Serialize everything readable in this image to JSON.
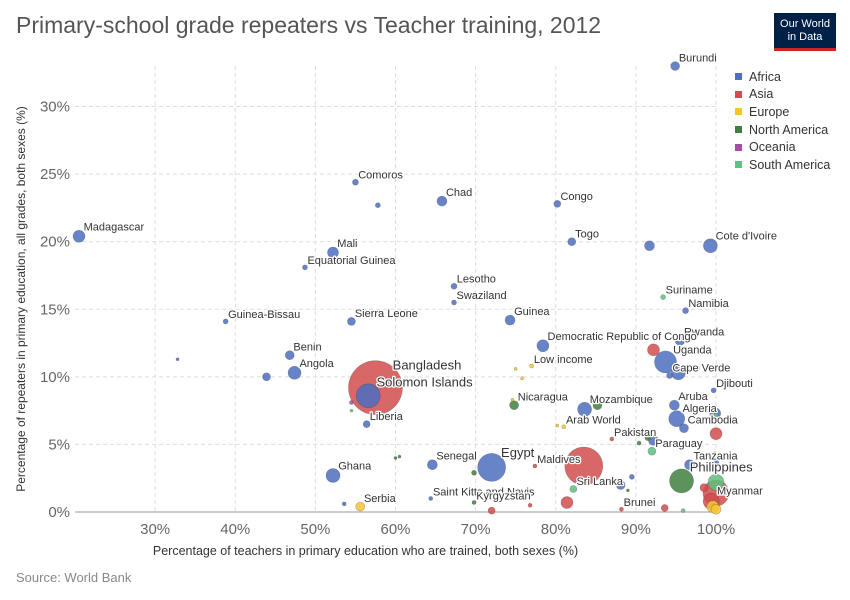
{
  "header": {
    "title": "Primary-school grade repeaters vs Teacher training, 2012",
    "logo_line1": "Our World",
    "logo_line2": "in Data"
  },
  "footer": {
    "source": "Source: World Bank"
  },
  "legend": {
    "items": [
      {
        "label": "Africa",
        "color": "#4c6fbf"
      },
      {
        "label": "Asia",
        "color": "#d14c4c"
      },
      {
        "label": "Europe",
        "color": "#f4c431"
      },
      {
        "label": "North America",
        "color": "#3f7f3f"
      },
      {
        "label": "Oceania",
        "color": "#a64ca6"
      },
      {
        "label": "South America",
        "color": "#5fbf7f"
      }
    ]
  },
  "chart_data": {
    "type": "scatter",
    "title": "Primary-school grade repeaters vs Teacher training, 2012",
    "xlabel": "Percentage of teachers in primary education who are trained, both sexes (%)",
    "ylabel": "Percentage of repeaters in primary education, all grades, both sexes (%)",
    "xlim": [
      20,
      100
    ],
    "ylim": [
      0,
      33
    ],
    "x_ticks": [
      30,
      40,
      50,
      60,
      70,
      80,
      90,
      100
    ],
    "x_tick_labels": [
      "30%",
      "40%",
      "50%",
      "60%",
      "70%",
      "80%",
      "90%",
      "100%"
    ],
    "y_ticks": [
      0,
      5,
      10,
      15,
      20,
      25,
      30
    ],
    "y_tick_labels": [
      "0%",
      "5%",
      "10%",
      "15%",
      "20%",
      "25%",
      "30%"
    ],
    "grid": true,
    "legend_position": "right",
    "points": [
      {
        "label": "Burundi",
        "region": "Africa",
        "x": 94.9,
        "y": 33.0,
        "size": 4.5,
        "show_label": true
      },
      {
        "label": "Madagascar",
        "region": "Africa",
        "x": 20.5,
        "y": 20.4,
        "size": 6,
        "show_label": true
      },
      {
        "label": "Comoros",
        "region": "Africa",
        "x": 55.0,
        "y": 24.4,
        "size": 3,
        "show_label": true
      },
      {
        "label": "",
        "region": "Africa",
        "x": 57.8,
        "y": 22.7,
        "size": 2.5,
        "show_label": false
      },
      {
        "label": "Chad",
        "region": "Africa",
        "x": 65.8,
        "y": 23.0,
        "size": 5,
        "show_label": true
      },
      {
        "label": "Congo",
        "region": "Africa",
        "x": 80.2,
        "y": 22.8,
        "size": 3.5,
        "show_label": true
      },
      {
        "label": "Mali",
        "region": "Africa",
        "x": 52.2,
        "y": 19.2,
        "size": 5.5,
        "show_label": true
      },
      {
        "label": "Equatorial Guinea",
        "region": "Africa",
        "x": 48.7,
        "y": 18.1,
        "size": 2.5,
        "show_label": true
      },
      {
        "label": "Togo",
        "region": "Africa",
        "x": 82.0,
        "y": 20.0,
        "size": 4,
        "show_label": true
      },
      {
        "label": "",
        "region": "Africa",
        "x": 91.7,
        "y": 19.7,
        "size": 5,
        "show_label": false
      },
      {
        "label": "Cote d'Ivoire",
        "region": "Africa",
        "x": 99.3,
        "y": 19.7,
        "size": 7,
        "show_label": true
      },
      {
        "label": "Lesotho",
        "region": "Africa",
        "x": 67.3,
        "y": 16.7,
        "size": 3,
        "show_label": true
      },
      {
        "label": "Swaziland",
        "region": "Africa",
        "x": 67.3,
        "y": 15.5,
        "size": 2.5,
        "show_label": true
      },
      {
        "label": "Guinea-Bissau",
        "region": "Africa",
        "x": 38.8,
        "y": 14.1,
        "size": 2.5,
        "show_label": true
      },
      {
        "label": "Sierra Leone",
        "region": "Africa",
        "x": 54.5,
        "y": 14.1,
        "size": 4,
        "show_label": true
      },
      {
        "label": "Guinea",
        "region": "Africa",
        "x": 74.3,
        "y": 14.2,
        "size": 5,
        "show_label": true
      },
      {
        "label": "Suriname",
        "region": "South America",
        "x": 93.4,
        "y": 15.9,
        "size": 2.5,
        "show_label": true
      },
      {
        "label": "Namibia",
        "region": "Africa",
        "x": 96.2,
        "y": 14.9,
        "size": 3,
        "show_label": true
      },
      {
        "label": "Rwanda",
        "region": "Africa",
        "x": 95.5,
        "y": 12.7,
        "size": 5,
        "show_label": true
      },
      {
        "label": "",
        "region": "Asia",
        "x": 92.2,
        "y": 12.0,
        "size": 6,
        "show_label": false
      },
      {
        "label": "Democratic Republic of Congo",
        "region": "Africa",
        "x": 78.4,
        "y": 12.3,
        "size": 6,
        "show_label": true
      },
      {
        "label": "Benin",
        "region": "Africa",
        "x": 46.8,
        "y": 11.6,
        "size": 4.5,
        "show_label": true
      },
      {
        "label": "",
        "region": "Africa",
        "x": 32.8,
        "y": 11.3,
        "size": 1.5,
        "show_label": false
      },
      {
        "label": "Angola",
        "region": "Africa",
        "x": 47.4,
        "y": 10.3,
        "size": 6.5,
        "show_label": true
      },
      {
        "label": "",
        "region": "Africa",
        "x": 43.9,
        "y": 10.0,
        "size": 4,
        "show_label": false
      },
      {
        "label": "Bangladesh",
        "region": "Asia",
        "x": 57.5,
        "y": 9.2,
        "size": 27,
        "show_label": true
      },
      {
        "label": "Solomon Islands",
        "region": "Africa",
        "x": 56.6,
        "y": 8.6,
        "size": 12,
        "show_label": true
      },
      {
        "label": "Low income",
        "region": "Europe",
        "x": 77.0,
        "y": 10.8,
        "size": 2,
        "show_label": true
      },
      {
        "label": "",
        "region": "Europe",
        "x": 75.0,
        "y": 10.6,
        "size": 1.5,
        "show_label": false
      },
      {
        "label": "",
        "region": "Europe",
        "x": 75.8,
        "y": 9.9,
        "size": 1.5,
        "show_label": false
      },
      {
        "label": "Uganda",
        "region": "Africa",
        "x": 93.7,
        "y": 11.1,
        "size": 11,
        "show_label": true
      },
      {
        "label": "",
        "region": "Africa",
        "x": 95.3,
        "y": 10.3,
        "size": 7,
        "show_label": false
      },
      {
        "label": "",
        "region": "Asia",
        "x": 97.5,
        "y": 10.6,
        "size": 3.5,
        "show_label": false
      },
      {
        "label": "Cape Verde",
        "region": "Africa",
        "x": 94.2,
        "y": 10.1,
        "size": 3,
        "show_label": true
      },
      {
        "label": "Djibouti",
        "region": "Africa",
        "x": 99.7,
        "y": 9.0,
        "size": 2.5,
        "show_label": true
      },
      {
        "label": "Nicaragua",
        "region": "North America",
        "x": 74.8,
        "y": 7.9,
        "size": 4.5,
        "show_label": true
      },
      {
        "label": "",
        "region": "Europe",
        "x": 74.6,
        "y": 8.3,
        "size": 1.5,
        "show_label": false
      },
      {
        "label": "Mozambique",
        "region": "Africa",
        "x": 83.6,
        "y": 7.6,
        "size": 7,
        "show_label": true
      },
      {
        "label": "",
        "region": "North America",
        "x": 85.2,
        "y": 7.9,
        "size": 4.5,
        "show_label": false
      },
      {
        "label": "",
        "region": "Asia",
        "x": 91.3,
        "y": 8.3,
        "size": 3,
        "show_label": false
      },
      {
        "label": "Aruba",
        "region": "Africa",
        "x": 94.8,
        "y": 7.9,
        "size": 5,
        "show_label": true
      },
      {
        "label": "",
        "region": "Africa",
        "x": 99.9,
        "y": 7.3,
        "size": 5.5,
        "show_label": false
      },
      {
        "label": "",
        "region": "South America",
        "x": 99.9,
        "y": 7.0,
        "size": 4,
        "show_label": false
      },
      {
        "label": "Algeria",
        "region": "Africa",
        "x": 95.1,
        "y": 6.9,
        "size": 8,
        "show_label": true
      },
      {
        "label": "Liberia",
        "region": "Africa",
        "x": 56.4,
        "y": 6.5,
        "size": 3.5,
        "show_label": true
      },
      {
        "label": "",
        "region": "Oceania",
        "x": 54.5,
        "y": 8.1,
        "size": 2,
        "show_label": false
      },
      {
        "label": "",
        "region": "South America",
        "x": 54.5,
        "y": 7.5,
        "size": 1.5,
        "show_label": false
      },
      {
        "label": "Arab World",
        "region": "Europe",
        "x": 81.0,
        "y": 6.3,
        "size": 2,
        "show_label": true
      },
      {
        "label": "",
        "region": "Europe",
        "x": 80.2,
        "y": 6.4,
        "size": 1.5,
        "show_label": false
      },
      {
        "label": "Cambodia",
        "region": "Africa",
        "x": 96.0,
        "y": 6.2,
        "size": 4.5,
        "show_label": true
      },
      {
        "label": "",
        "region": "Asia",
        "x": 100.0,
        "y": 5.8,
        "size": 6,
        "show_label": false
      },
      {
        "label": "Pakistan",
        "region": "Asia",
        "x": 87.0,
        "y": 5.4,
        "size": 2,
        "show_label": true
      },
      {
        "label": "",
        "region": "North America",
        "x": 91.5,
        "y": 5.5,
        "size": 3,
        "show_label": false
      },
      {
        "label": "",
        "region": "Africa",
        "x": 92.2,
        "y": 5.3,
        "size": 5,
        "show_label": false
      },
      {
        "label": "Paraguay",
        "region": "South America",
        "x": 92.0,
        "y": 4.5,
        "size": 4,
        "show_label": true
      },
      {
        "label": "",
        "region": "North America",
        "x": 90.4,
        "y": 5.1,
        "size": 2,
        "show_label": false
      },
      {
        "label": "",
        "region": "Africa",
        "x": 99.8,
        "y": 4.3,
        "size": 2,
        "show_label": false
      },
      {
        "label": "Egypt",
        "region": "Africa",
        "x": 72.0,
        "y": 3.3,
        "size": 14,
        "show_label": true
      },
      {
        "label": "Senegal",
        "region": "Africa",
        "x": 64.6,
        "y": 3.5,
        "size": 5,
        "show_label": true
      },
      {
        "label": "",
        "region": "North America",
        "x": 69.8,
        "y": 2.9,
        "size": 2.5,
        "show_label": false
      },
      {
        "label": "",
        "region": "North America",
        "x": 60.0,
        "y": 4.0,
        "size": 1.5,
        "show_label": false
      },
      {
        "label": "",
        "region": "North America",
        "x": 60.5,
        "y": 4.1,
        "size": 1.5,
        "show_label": false
      },
      {
        "label": "Ghana",
        "region": "Africa",
        "x": 52.2,
        "y": 2.7,
        "size": 7,
        "show_label": true
      },
      {
        "label": "Maldives",
        "region": "Asia",
        "x": 77.4,
        "y": 3.4,
        "size": 2,
        "show_label": true
      },
      {
        "label": "",
        "region": "Europe",
        "x": 80.2,
        "y": 3.9,
        "size": 1.5,
        "show_label": false
      },
      {
        "label": "",
        "region": "Asia",
        "x": 83.5,
        "y": 3.4,
        "size": 19,
        "show_label": false
      },
      {
        "label": "Tanzania",
        "region": "Africa",
        "x": 96.7,
        "y": 3.5,
        "size": 5,
        "show_label": true
      },
      {
        "label": "",
        "region": "Africa",
        "x": 100.0,
        "y": 3.6,
        "size": 3,
        "show_label": false
      },
      {
        "label": "Philippines",
        "region": "North America",
        "x": 95.7,
        "y": 2.3,
        "size": 12,
        "show_label": true
      },
      {
        "label": "",
        "region": "South America",
        "x": 100.0,
        "y": 2.2,
        "size": 8,
        "show_label": false
      },
      {
        "label": "",
        "region": "Asia",
        "x": 100.0,
        "y": 1.4,
        "size": 13,
        "show_label": false
      },
      {
        "label": "",
        "region": "Asia",
        "x": 98.5,
        "y": 1.8,
        "size": 4,
        "show_label": false
      },
      {
        "label": "Myanmar",
        "region": "Asia",
        "x": 99.4,
        "y": 0.8,
        "size": 8,
        "show_label": true
      },
      {
        "label": "",
        "region": "Africa",
        "x": 88.1,
        "y": 2.0,
        "size": 4.5,
        "show_label": false
      },
      {
        "label": "",
        "region": "Africa",
        "x": 89.5,
        "y": 2.6,
        "size": 2.5,
        "show_label": false
      },
      {
        "label": "Sri Lanka",
        "region": "South America",
        "x": 82.2,
        "y": 1.7,
        "size": 3.5,
        "show_label": true
      },
      {
        "label": "",
        "region": "North America",
        "x": 89.0,
        "y": 1.6,
        "size": 1.5,
        "show_label": false
      },
      {
        "label": "",
        "region": "Asia",
        "x": 81.4,
        "y": 0.7,
        "size": 6,
        "show_label": false
      },
      {
        "label": "Saint Kitts and Nevis",
        "region": "Africa",
        "x": 64.4,
        "y": 1.0,
        "size": 2,
        "show_label": true
      },
      {
        "label": "Kyrgyzstan",
        "region": "North America",
        "x": 69.8,
        "y": 0.7,
        "size": 2,
        "show_label": true
      },
      {
        "label": "",
        "region": "Asia",
        "x": 72.0,
        "y": 0.1,
        "size": 3.5,
        "show_label": false
      },
      {
        "label": "",
        "region": "Asia",
        "x": 76.8,
        "y": 0.5,
        "size": 2,
        "show_label": false
      },
      {
        "label": "Serbia",
        "region": "Europe",
        "x": 55.6,
        "y": 0.4,
        "size": 4.5,
        "show_label": true
      },
      {
        "label": "",
        "region": "Africa",
        "x": 53.6,
        "y": 0.6,
        "size": 2,
        "show_label": false
      },
      {
        "label": "Brunei",
        "region": "Asia",
        "x": 88.2,
        "y": 0.2,
        "size": 2,
        "show_label": true
      },
      {
        "label": "",
        "region": "Asia",
        "x": 93.6,
        "y": 0.3,
        "size": 3.5,
        "show_label": false
      },
      {
        "label": "",
        "region": "South America",
        "x": 95.9,
        "y": 0.1,
        "size": 2,
        "show_label": false
      },
      {
        "label": "",
        "region": "Europe",
        "x": 99.6,
        "y": 0.4,
        "size": 6,
        "show_label": false
      },
      {
        "label": "",
        "region": "Europe",
        "x": 100.0,
        "y": 0.2,
        "size": 5,
        "show_label": false
      }
    ]
  }
}
